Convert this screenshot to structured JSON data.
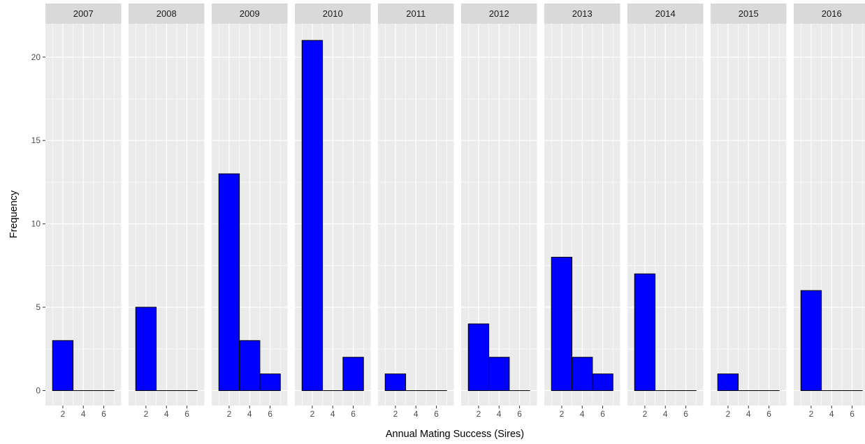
{
  "chart_data": {
    "type": "bar",
    "subtype": "faceted-histogram",
    "xlabel": "Annual Mating Success (Sires)",
    "ylabel": "Frequency",
    "ylim": [
      -0.9,
      22.0
    ],
    "xlim": [
      0.3,
      7.7
    ],
    "y_ticks": [
      0,
      5,
      10,
      15,
      20
    ],
    "x_ticks": [
      2,
      4,
      6
    ],
    "bin_width": 2,
    "bins": [
      [
        1,
        3
      ],
      [
        3,
        5
      ],
      [
        5,
        7
      ]
    ],
    "facets": [
      {
        "label": "2007",
        "counts": [
          3,
          0,
          0
        ]
      },
      {
        "label": "2008",
        "counts": [
          5,
          0,
          0
        ]
      },
      {
        "label": "2009",
        "counts": [
          13,
          3,
          1
        ]
      },
      {
        "label": "2010",
        "counts": [
          21,
          0,
          2
        ]
      },
      {
        "label": "2011",
        "counts": [
          1,
          0,
          0
        ]
      },
      {
        "label": "2012",
        "counts": [
          4,
          2,
          0
        ]
      },
      {
        "label": "2013",
        "counts": [
          8,
          2,
          1
        ]
      },
      {
        "label": "2014",
        "counts": [
          7,
          0,
          0
        ]
      },
      {
        "label": "2015",
        "counts": [
          1,
          0,
          0
        ]
      },
      {
        "label": "2016",
        "counts": [
          6,
          0,
          0
        ]
      }
    ],
    "grid": true,
    "colors": {
      "bar_fill": "#0000ff",
      "bar_stroke": "#000000",
      "panel_background": "#ebebeb",
      "strip_background": "#d9d9d9",
      "grid_major": "#ffffff"
    }
  }
}
